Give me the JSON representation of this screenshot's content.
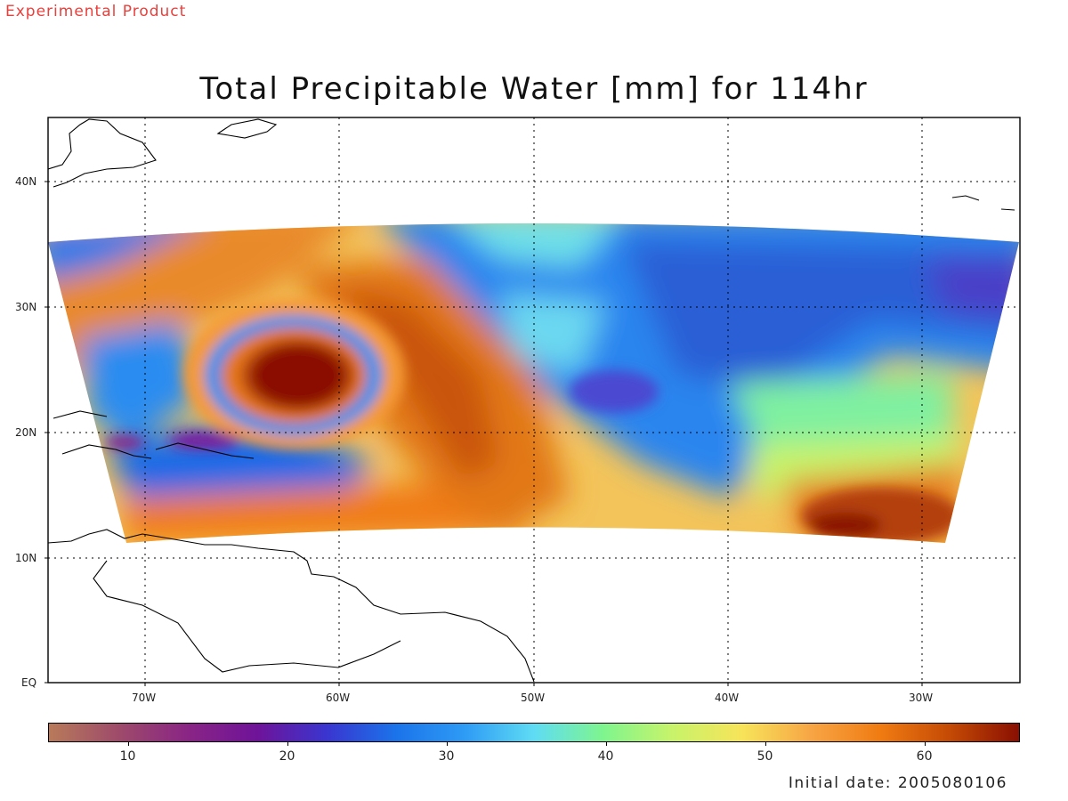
{
  "header": {
    "experimental": "Experimental Product",
    "title": "Total Precipitable Water [mm] for 114hr"
  },
  "map": {
    "region": "Western North Atlantic / Caribbean",
    "lat_labels": [
      "EQ",
      "10N",
      "20N",
      "30N",
      "40N"
    ],
    "lon_labels": [
      "70W",
      "60W",
      "50W",
      "40W",
      "30W"
    ],
    "lat_range": [
      0,
      45
    ],
    "lon_range": [
      -75,
      -25
    ],
    "grid": "dotted",
    "features": [
      {
        "type": "cyclone",
        "center_lon": -62,
        "center_lat": 24.5,
        "tpw": 66
      },
      {
        "type": "moist-band",
        "center_lon": -33,
        "center_lat": 13,
        "tpw": 63
      }
    ]
  },
  "colorbar": {
    "min": 5,
    "max": 66,
    "tick_labels": [
      "10",
      "20",
      "30",
      "40",
      "50",
      "60"
    ],
    "tick_values": [
      10,
      20,
      30,
      40,
      50,
      60
    ],
    "colors": [
      "#b87a5a",
      "#9e4b6a",
      "#8a2585",
      "#6f1399",
      "#3a35cf",
      "#1b73ea",
      "#2e9bf5",
      "#5fdcf4",
      "#7ff58e",
      "#c8f36a",
      "#f7e45a",
      "#f7a545",
      "#f07b12",
      "#c44a05",
      "#8a0f02"
    ]
  },
  "footer": {
    "initial_date": "Initial date: 2005080106"
  }
}
